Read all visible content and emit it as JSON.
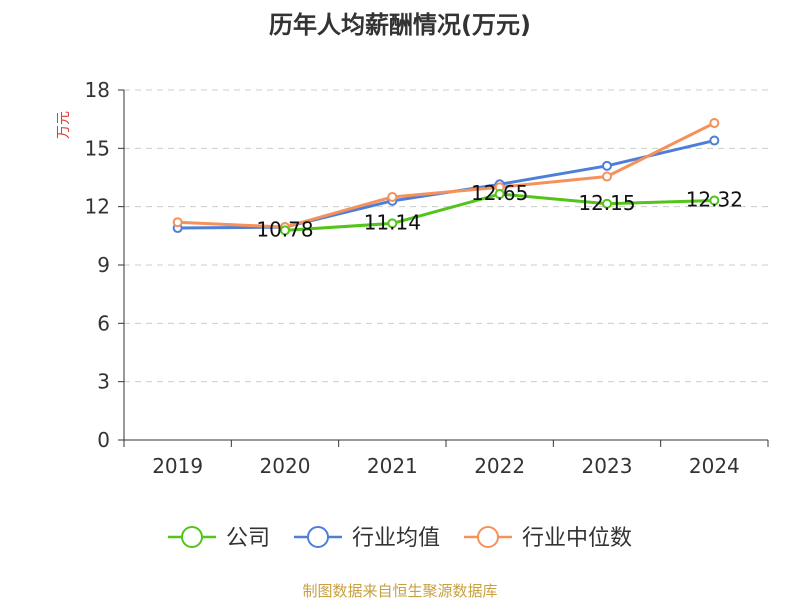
{
  "chart_data": {
    "type": "line",
    "title": "历年人均薪酬情况(万元)",
    "ylabel": "万元",
    "xlabel": "",
    "categories": [
      "2019",
      "2020",
      "2021",
      "2022",
      "2023",
      "2024"
    ],
    "ylim": [
      0,
      18
    ],
    "yticks": [
      0,
      3,
      6,
      9,
      12,
      15,
      18
    ],
    "grid": true,
    "legend_position": "bottom",
    "series": [
      {
        "name": "公司",
        "color": "#52c41a",
        "values": [
          null,
          10.78,
          11.14,
          12.65,
          12.15,
          12.32
        ],
        "labels": [
          "",
          "10.78",
          "11.14",
          "12.65",
          "12.15",
          "12.32"
        ]
      },
      {
        "name": "行业均值",
        "color": "#4e7fd8",
        "values": [
          10.9,
          10.95,
          12.3,
          13.15,
          14.1,
          15.4
        ]
      },
      {
        "name": "行业中位数",
        "color": "#f5915a",
        "values": [
          11.2,
          10.95,
          12.5,
          13.0,
          13.55,
          16.3
        ]
      }
    ]
  },
  "source": "制图数据来自恒生聚源数据库"
}
